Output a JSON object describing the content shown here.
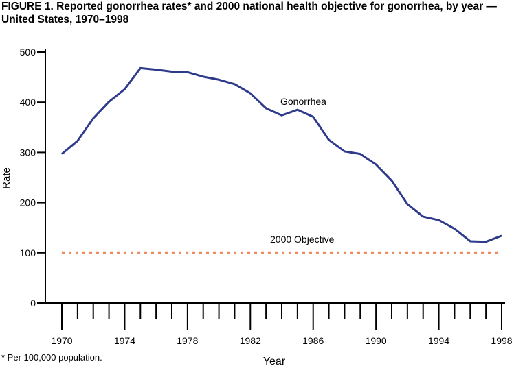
{
  "chart_data": {
    "type": "line",
    "title": "FIGURE 1. Reported gonorrhea rates* and 2000 national health objective for gonorrhea, by year — United States, 1970–1998",
    "xlabel": "Year",
    "ylabel": "Rate",
    "footnote": "* Per 100,000 population.",
    "xlim": [
      1970,
      1998
    ],
    "ylim": [
      0,
      500
    ],
    "xticks": [
      "1970",
      "1974",
      "1978",
      "1982",
      "1986",
      "1990",
      "1994",
      "1998"
    ],
    "yticks": [
      "0",
      "100",
      "200",
      "300",
      "400",
      "500"
    ],
    "grid": false,
    "series": [
      {
        "name": "Gonorrhea",
        "color": "#2e3a8c",
        "x": [
          1970,
          1971,
          1972,
          1973,
          1974,
          1975,
          1976,
          1977,
          1978,
          1979,
          1980,
          1981,
          1982,
          1983,
          1984,
          1985,
          1986,
          1987,
          1988,
          1989,
          1990,
          1991,
          1992,
          1993,
          1994,
          1995,
          1996,
          1997,
          1998
        ],
        "values": [
          297,
          323,
          368,
          401,
          426,
          468,
          465,
          461,
          460,
          451,
          445,
          436,
          418,
          388,
          374,
          385,
          371,
          325,
          302,
          297,
          276,
          244,
          197,
          172,
          165,
          148,
          123,
          122,
          134
        ]
      }
    ],
    "reference_line": {
      "name": "2000 Objective",
      "value": 100,
      "color": "#ef8b5e",
      "style": "dotted"
    }
  }
}
